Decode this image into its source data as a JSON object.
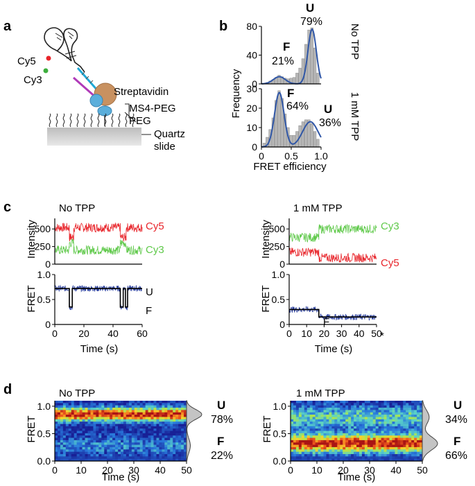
{
  "panels": {
    "a": {
      "letter": "a",
      "labels": {
        "cy5": "Cy5",
        "cy3": "Cy3",
        "streptavidin": "Streptavidin",
        "ms4peg": "MS4-PEG",
        "peg": "PEG",
        "quartz1": "Quartz",
        "quartz2": "slide"
      }
    },
    "b": {
      "letter": "b",
      "ylabel": "Frequency",
      "xlabel": "FRET efficiency",
      "cond_top": "No TPP",
      "cond_bottom": "1 mM TPP",
      "top": {
        "f_letter": "F",
        "f_pct": "21%",
        "u_letter": "U",
        "u_pct": "79%"
      },
      "bottom": {
        "f_letter": "F",
        "f_pct": "64%",
        "u_letter": "U",
        "u_pct": "36%"
      }
    },
    "c": {
      "letter": "c",
      "left": {
        "title": "No TPP",
        "int_ylabel": "Intensity",
        "fret_ylabel": "FRET",
        "xlabel": "Time (s)",
        "top_label": "Cy5",
        "bottom_label": "Cy3",
        "state_u": "U",
        "state_f": "F"
      },
      "right": {
        "title": "1 mM TPP",
        "int_ylabel": "Intensity",
        "fret_ylabel": "FRET",
        "xlabel": "Time (s)",
        "top_label": "Cy3",
        "bottom_label": "Cy5",
        "state_f": "F",
        "star": "*"
      }
    },
    "d": {
      "letter": "d",
      "left": {
        "title": "No TPP",
        "ylabel": "FRET",
        "xlabel": "Time (s)",
        "u_letter": "U",
        "u_pct": "78%",
        "f_letter": "F",
        "f_pct": "22%"
      },
      "right": {
        "title": "1 mM TPP",
        "ylabel": "FRET",
        "xlabel": "Time (s)",
        "u_letter": "U",
        "u_pct": "34%",
        "f_letter": "F",
        "f_pct": "66%"
      }
    }
  },
  "colors": {
    "cy5": "#e8242a",
    "cy3": "#5fc94a",
    "fret": "#2a3f9d",
    "fit": "#000000",
    "hist_bar": "#b8b8b8",
    "hist_fit": "#2f56a6"
  },
  "chart_data": [
    {
      "type": "bar",
      "panel": "b-top",
      "condition": "No TPP",
      "xlabel": "FRET efficiency",
      "ylabel": "Frequency",
      "xlim": [
        0,
        1.0
      ],
      "ylim": [
        0,
        80
      ],
      "xticks": [
        0,
        0.5,
        1.0
      ],
      "yticks": [
        0,
        40,
        80
      ],
      "x": [
        0.05,
        0.1,
        0.15,
        0.2,
        0.25,
        0.3,
        0.35,
        0.4,
        0.45,
        0.5,
        0.55,
        0.6,
        0.65,
        0.7,
        0.75,
        0.8,
        0.85,
        0.9,
        0.95
      ],
      "values": [
        0,
        2,
        4,
        6,
        9,
        12,
        10,
        8,
        7,
        8,
        9,
        15,
        22,
        35,
        55,
        75,
        78,
        50,
        15
      ],
      "fit_peaks": [
        {
          "center": 0.3,
          "height": 10,
          "width": 0.1
        },
        {
          "center": 0.85,
          "height": 76,
          "width": 0.07
        }
      ]
    },
    {
      "type": "bar",
      "panel": "b-bottom",
      "condition": "1 mM TPP",
      "xlabel": "FRET efficiency",
      "ylabel": "Frequency",
      "xlim": [
        0,
        1.0
      ],
      "ylim": [
        0,
        30
      ],
      "xticks": [
        0,
        0.5,
        1.0
      ],
      "yticks": [
        0,
        10,
        20,
        30
      ],
      "x": [
        0.05,
        0.1,
        0.15,
        0.2,
        0.25,
        0.3,
        0.35,
        0.4,
        0.45,
        0.5,
        0.55,
        0.6,
        0.65,
        0.7,
        0.75,
        0.8,
        0.85,
        0.9,
        0.95
      ],
      "values": [
        2,
        5,
        9,
        15,
        24,
        29,
        25,
        17,
        10,
        6,
        6,
        8,
        11,
        13,
        14,
        14,
        12,
        8,
        4
      ],
      "fit_peaks": [
        {
          "center": 0.3,
          "height": 28,
          "width": 0.08
        },
        {
          "center": 0.82,
          "height": 13,
          "width": 0.13
        }
      ]
    },
    {
      "type": "line",
      "panel": "c-left-intensity",
      "condition": "No TPP",
      "ylabel": "Intensity",
      "xlim": [
        0,
        60
      ],
      "ylim": [
        0,
        650
      ],
      "yticks": [
        0,
        250,
        500
      ],
      "series": [
        {
          "name": "Cy5",
          "color": "#e8242a",
          "segments": [
            {
              "t": [
                0,
                10
              ],
              "level": 520
            },
            {
              "t": [
                10,
                13
              ],
              "level": 380
            },
            {
              "t": [
                13,
                45
              ],
              "level": 520
            },
            {
              "t": [
                45,
                49
              ],
              "level": 380
            },
            {
              "t": [
                49,
                60
              ],
              "level": 520
            }
          ]
        },
        {
          "name": "Cy3",
          "color": "#5fc94a",
          "segments": [
            {
              "t": [
                0,
                10
              ],
              "level": 200
            },
            {
              "t": [
                10,
                13
              ],
              "level": 300
            },
            {
              "t": [
                13,
                45
              ],
              "level": 200
            },
            {
              "t": [
                45,
                49
              ],
              "level": 300
            },
            {
              "t": [
                49,
                60
              ],
              "level": 200
            }
          ]
        }
      ]
    },
    {
      "type": "line",
      "panel": "c-left-fret",
      "condition": "No TPP",
      "xlabel": "Time (s)",
      "ylabel": "FRET",
      "xlim": [
        0,
        60
      ],
      "ylim": [
        0,
        1.0
      ],
      "xticks": [
        0,
        20,
        40,
        60
      ],
      "yticks": [
        0,
        0.5,
        1.0
      ],
      "states": {
        "U": 0.72,
        "F": 0.35
      },
      "fit_steps": [
        [
          0,
          0.72
        ],
        [
          10,
          0.72
        ],
        [
          10,
          0.35
        ],
        [
          12,
          0.35
        ],
        [
          12,
          0.72
        ],
        [
          45,
          0.72
        ],
        [
          45,
          0.35
        ],
        [
          47,
          0.35
        ],
        [
          47,
          0.72
        ],
        [
          48.5,
          0.72
        ],
        [
          48.5,
          0.35
        ],
        [
          50,
          0.35
        ],
        [
          50,
          0.72
        ],
        [
          60,
          0.72
        ]
      ]
    },
    {
      "type": "line",
      "panel": "c-right-intensity",
      "condition": "1 mM TPP",
      "ylabel": "Intensity",
      "xlim": [
        0,
        50
      ],
      "ylim": [
        0,
        650
      ],
      "yticks": [
        0,
        250,
        500
      ],
      "series": [
        {
          "name": "Cy3",
          "color": "#5fc94a",
          "segments": [
            {
              "t": [
                0,
                17
              ],
              "level": 380
            },
            {
              "t": [
                17,
                50
              ],
              "level": 500
            }
          ]
        },
        {
          "name": "Cy5",
          "color": "#e8242a",
          "segments": [
            {
              "t": [
                0,
                17
              ],
              "level": 170
            },
            {
              "t": [
                17,
                50
              ],
              "level": 90
            }
          ]
        }
      ]
    },
    {
      "type": "line",
      "panel": "c-right-fret",
      "condition": "1 mM TPP",
      "xlabel": "Time (s)",
      "ylabel": "FRET",
      "xlim": [
        0,
        50
      ],
      "ylim": [
        0,
        1.0
      ],
      "xticks": [
        0,
        10,
        20,
        30,
        40,
        50
      ],
      "yticks": [
        0,
        0.5,
        1.0
      ],
      "states": {
        "F": 0.3
      },
      "fit_steps": [
        [
          0,
          0.3
        ],
        [
          17,
          0.3
        ],
        [
          17,
          0.15
        ],
        [
          50,
          0.15
        ]
      ]
    },
    {
      "type": "heatmap",
      "panel": "d-left",
      "condition": "No TPP",
      "xlabel": "Time (s)",
      "ylabel": "FRET",
      "xlim": [
        0,
        50
      ],
      "ylim": [
        0,
        1.1
      ],
      "xticks": [
        0,
        10,
        20,
        30,
        40,
        50
      ],
      "yticks": [
        0,
        0.5,
        1.0
      ],
      "high_density_fret": 0.85,
      "population": {
        "U": 78,
        "F": 22
      }
    },
    {
      "type": "heatmap",
      "panel": "d-right",
      "condition": "1 mM TPP",
      "xlabel": "Time (s)",
      "ylabel": "FRET",
      "xlim": [
        0,
        50
      ],
      "ylim": [
        0,
        1.1
      ],
      "xticks": [
        0,
        10,
        20,
        30,
        40,
        50
      ],
      "yticks": [
        0,
        0.5,
        1.0
      ],
      "high_density_fret": 0.32,
      "population": {
        "U": 34,
        "F": 66
      }
    }
  ]
}
